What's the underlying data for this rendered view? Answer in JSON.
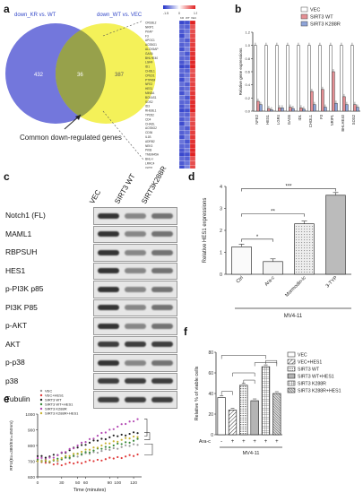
{
  "panel_letters": {
    "a": "a",
    "b": "b",
    "c": "c",
    "d": "d",
    "e": "e",
    "f": "f"
  },
  "venn": {
    "left_title": "down_KR vs. WT",
    "right_title": "down_WT vs. VEC",
    "left_count": "432",
    "overlap_count": "36",
    "right_count": "387",
    "caption": "Common down-regulated genes",
    "left_color": "#5a5fd6",
    "right_color": "#f2ee3c"
  },
  "heatmap": {
    "col_labels": [
      "KR",
      "WT",
      "VEC"
    ],
    "scale_labels": [
      "-1.5",
      "0",
      "1.5"
    ],
    "genes": [
      "CREBL2",
      "NRIP1",
      "PKAP",
      "F3",
      "APOC1",
      "ACSBG1",
      "ALOX5AP",
      "GAS6",
      "BHLHE40",
      "LGR4",
      "ID1",
      "CHI3L1",
      "CPED1",
      "PTPRM",
      "NFE2",
      "HES1",
      "MINDA",
      "BCKAS1",
      "SOS2",
      "ID3",
      "RHEBL1",
      "TPD52",
      "CD4",
      "CHADL",
      "ACSBG2",
      "CD36",
      "IL1B",
      "ADRB2",
      "NEK3",
      "PKIB",
      "TMEM45A",
      "BHLH",
      "LRRC4",
      "GPD1"
    ],
    "low_color": "#2232c8",
    "high_color": "#e02222"
  },
  "western": {
    "lane_labels": [
      "VEC",
      "SIRT3 WT",
      "SIRT3K288R"
    ],
    "bands": [
      "Notch1 (FL)",
      "MAML1",
      "RBPSUH",
      "HES1",
      "p-PI3K p85",
      "PI3K P85",
      "p-AKT",
      "AKT",
      "p-p38",
      "p38",
      "Tubulin"
    ]
  },
  "chart_data": [
    {
      "type": "bar",
      "panel": "b",
      "ylabel": "Relative gene expressions",
      "ylim": [
        0,
        1.2
      ],
      "yticks": [
        "0.0",
        "0.2",
        "0.4",
        "0.6",
        "0.8",
        "1.0",
        "1.2"
      ],
      "categories": [
        "NFE2",
        "HES1",
        "LGR4",
        "GAS6",
        "ID1",
        "CHI3L1",
        "F3",
        "NRIP1",
        "BHLHE40",
        "SOS2"
      ],
      "series": [
        {
          "name": "VEC",
          "color": "#ffffff",
          "values": [
            1,
            1,
            1,
            1,
            1,
            1,
            1,
            1,
            1,
            1
          ]
        },
        {
          "name": "SIRT3 WT",
          "color": "#e58f94",
          "values": [
            0.15,
            0.04,
            0.05,
            0.06,
            0.05,
            0.3,
            0.33,
            0.6,
            0.22,
            0.1
          ]
        },
        {
          "name": "SIRT3 K288R",
          "color": "#8ea4d8",
          "values": [
            0.1,
            0.02,
            0.05,
            0.04,
            0.03,
            0.1,
            0.06,
            0.12,
            0.1,
            0.06
          ]
        }
      ]
    },
    {
      "type": "bar",
      "panel": "d",
      "title": "MV4-11",
      "ylabel": "Relative HES1 expressions",
      "ylim": [
        0,
        4
      ],
      "yticks": [
        "0",
        "1",
        "2",
        "3",
        "4"
      ],
      "categories": [
        "Ctrl",
        "Ara-c",
        "Mormodin-lc",
        "3-TYP"
      ],
      "values": [
        1.25,
        0.58,
        2.3,
        3.6
      ],
      "sig_labels": [
        "*",
        "**",
        "***"
      ]
    },
    {
      "type": "line",
      "panel": "e",
      "xlabel": "Time (minutes)",
      "ylabel": "RFU(Ex=380/Em=450nm)",
      "xlim": [
        0,
        130
      ],
      "ylim": [
        600,
        1000
      ],
      "xticks": [
        "0",
        "30",
        "50",
        "60",
        "90",
        "100",
        "120"
      ],
      "yticks": [
        "600",
        "700",
        "800",
        "900",
        "1000"
      ],
      "x": [
        0,
        5,
        10,
        15,
        20,
        25,
        30,
        35,
        40,
        45,
        50,
        55,
        60,
        65,
        70,
        75,
        80,
        85,
        90,
        95,
        100,
        105,
        110,
        115,
        120,
        125
      ],
      "series": [
        {
          "name": "VEC",
          "color": "#999999",
          "values": [
            715,
            705,
            700,
            700,
            702,
            705,
            710,
            715,
            720,
            728,
            735,
            740,
            745,
            750,
            755,
            760,
            765,
            770,
            775,
            780,
            785,
            790,
            795,
            800,
            805,
            810
          ]
        },
        {
          "name": "VEC+HES1",
          "color": "#e03a3a",
          "values": [
            710,
            700,
            690,
            685,
            682,
            680,
            680,
            682,
            685,
            688,
            690,
            693,
            696,
            700,
            703,
            706,
            710,
            713,
            716,
            720,
            723,
            726,
            730,
            733,
            736,
            740
          ]
        },
        {
          "name": "SIRT3 WT",
          "color": "#222222",
          "values": [
            735,
            730,
            728,
            730,
            735,
            742,
            750,
            760,
            770,
            780,
            790,
            800,
            810,
            818,
            826,
            834,
            840,
            846,
            852,
            858,
            862,
            866,
            870,
            874,
            878,
            882
          ]
        },
        {
          "name": "SIRT3 WT+HES1",
          "color": "#3a8a3a",
          "values": [
            705,
            700,
            698,
            700,
            704,
            710,
            716,
            722,
            728,
            735,
            742,
            748,
            755,
            762,
            768,
            775,
            782,
            788,
            794,
            800,
            806,
            812,
            818,
            824,
            830,
            836
          ]
        },
        {
          "name": "SIRT3 K288R",
          "color": "#b44ab4",
          "values": [
            720,
            715,
            715,
            720,
            728,
            738,
            750,
            762,
            775,
            788,
            800,
            812,
            825,
            838,
            850,
            862,
            874,
            886,
            898,
            910,
            920,
            930,
            940,
            950,
            960,
            968
          ]
        },
        {
          "name": "SIRT3 K288R+HES1",
          "color": "#c8b232",
          "values": [
            705,
            700,
            700,
            702,
            706,
            712,
            720,
            728,
            736,
            744,
            752,
            760,
            768,
            776,
            784,
            792,
            800,
            808,
            816,
            824,
            830,
            836,
            842,
            848,
            854,
            860
          ]
        }
      ]
    },
    {
      "type": "bar",
      "panel": "f",
      "ylabel": "Relative % of viable cells",
      "ylim": [
        0,
        80
      ],
      "yticks": [
        "0",
        "20",
        "40",
        "60",
        "80"
      ],
      "xlabel": "MV4-11",
      "row_label": "Ara-c",
      "row_signs": [
        "-",
        "+",
        "+",
        "+",
        "+",
        "+"
      ],
      "categories": [
        "VEC",
        "VEC+HES1",
        "SIRT3 WT",
        "SIRT3 WT+HES1",
        "SIRT3 K288R",
        "SIRT3 K288R+HES1"
      ],
      "values": [
        36,
        24,
        48,
        33,
        66,
        40
      ],
      "patterns": [
        "plain",
        "hatch",
        "dots",
        "vline",
        "grid",
        "dense"
      ]
    }
  ]
}
